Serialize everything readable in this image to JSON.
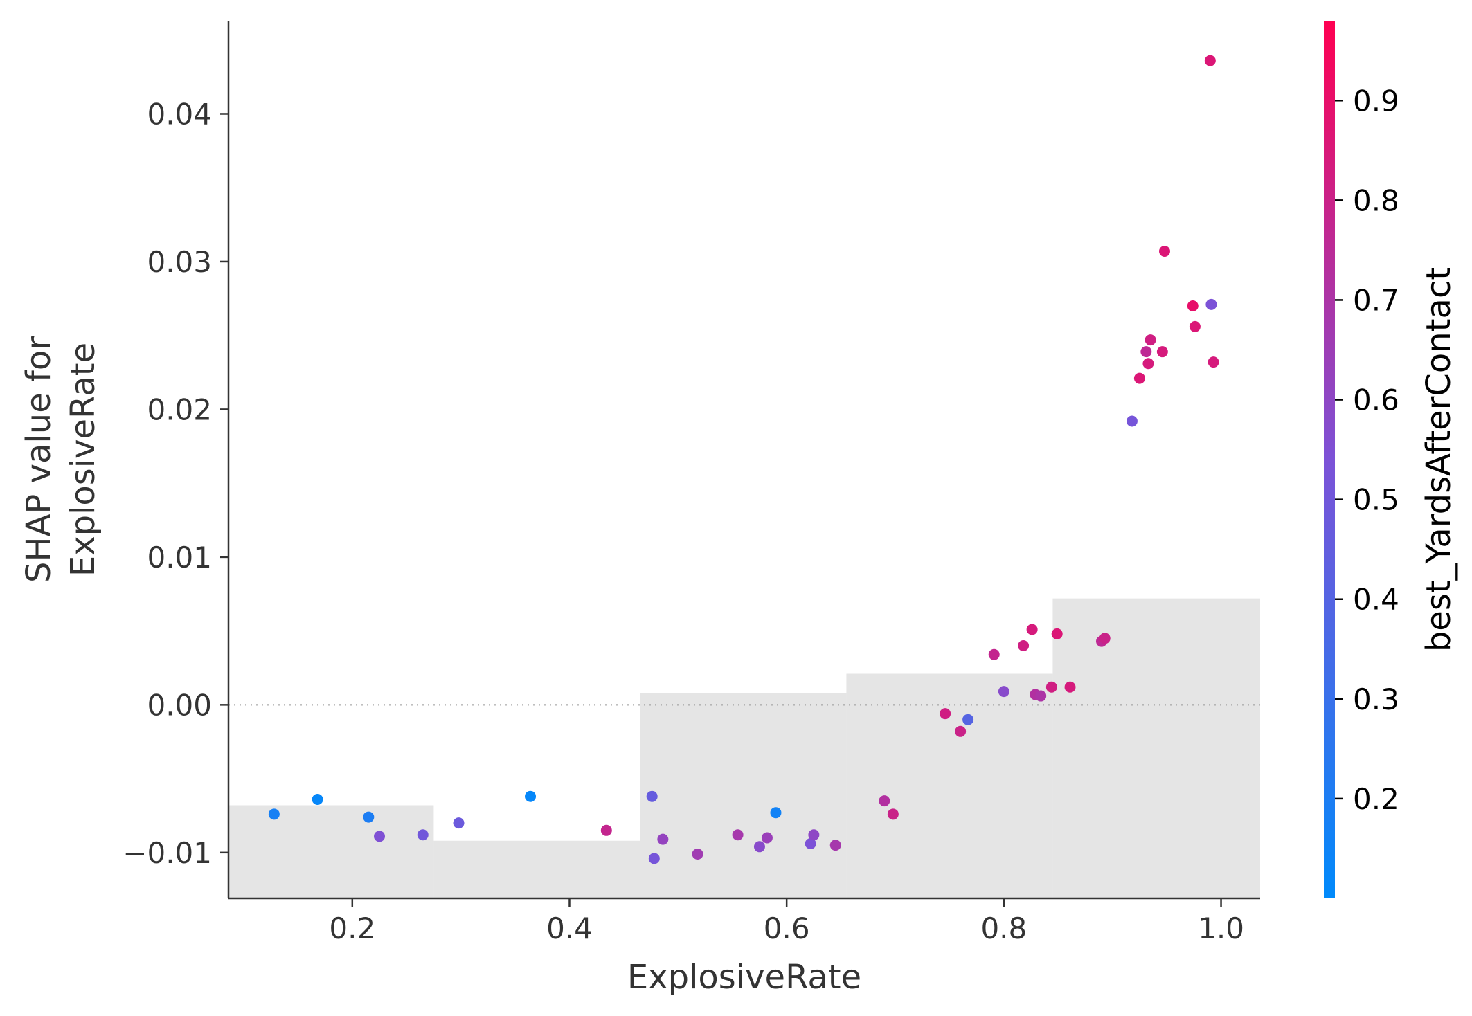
{
  "chart_data": {
    "type": "scatter",
    "xlabel": "ExplosiveRate",
    "ylabel_lines": [
      "SHAP value for",
      "ExplosiveRate"
    ],
    "xlim": [
      0.086,
      1.036
    ],
    "ylim": [
      -0.0131,
      0.0463
    ],
    "xticks": [
      0.2,
      0.4,
      0.6,
      0.8,
      1.0
    ],
    "xtick_labels": [
      "0.2",
      "0.4",
      "0.6",
      "0.8",
      "1.0"
    ],
    "yticks": [
      -0.01,
      0.0,
      0.01,
      0.02,
      0.03,
      0.04
    ],
    "ytick_labels": [
      "−0.01",
      "0.00",
      "0.01",
      "0.02",
      "0.03",
      "0.04"
    ],
    "zero_line": 0.0,
    "histogram_bins": [
      {
        "x0": 0.086,
        "x1": 0.275,
        "height": -0.0068
      },
      {
        "x0": 0.275,
        "x1": 0.465,
        "height": -0.0092
      },
      {
        "x0": 0.465,
        "x1": 0.655,
        "height": 0.0008
      },
      {
        "x0": 0.655,
        "x1": 0.845,
        "height": 0.0021
      },
      {
        "x0": 0.845,
        "x1": 1.036,
        "height": 0.0072
      }
    ],
    "histogram_color": "#e5e5e5",
    "colorbar": {
      "label": "best_YardsAfterContact",
      "range": [
        0.1,
        0.98
      ],
      "ticks": [
        0.2,
        0.3,
        0.4,
        0.5,
        0.6,
        0.7,
        0.8,
        0.9
      ],
      "tick_labels": [
        "0.2",
        "0.3",
        "0.4",
        "0.5",
        "0.6",
        "0.7",
        "0.8",
        "0.9"
      ],
      "color_low": "#008afb",
      "color_mid": "#7c52d7",
      "color_high": "#ff0051"
    },
    "points": [
      {
        "x": 0.128,
        "y": -0.0074,
        "c": 0.18
      },
      {
        "x": 0.168,
        "y": -0.0064,
        "c": 0.12
      },
      {
        "x": 0.215,
        "y": -0.0076,
        "c": 0.2
      },
      {
        "x": 0.225,
        "y": -0.0089,
        "c": 0.55
      },
      {
        "x": 0.265,
        "y": -0.0088,
        "c": 0.5
      },
      {
        "x": 0.298,
        "y": -0.008,
        "c": 0.48
      },
      {
        "x": 0.364,
        "y": -0.0062,
        "c": 0.12
      },
      {
        "x": 0.434,
        "y": -0.0085,
        "c": 0.78
      },
      {
        "x": 0.476,
        "y": -0.0062,
        "c": 0.46
      },
      {
        "x": 0.478,
        "y": -0.0104,
        "c": 0.52
      },
      {
        "x": 0.486,
        "y": -0.0091,
        "c": 0.62
      },
      {
        "x": 0.518,
        "y": -0.0101,
        "c": 0.66
      },
      {
        "x": 0.555,
        "y": -0.0088,
        "c": 0.68
      },
      {
        "x": 0.575,
        "y": -0.0096,
        "c": 0.58
      },
      {
        "x": 0.582,
        "y": -0.009,
        "c": 0.64
      },
      {
        "x": 0.59,
        "y": -0.0073,
        "c": 0.16
      },
      {
        "x": 0.622,
        "y": -0.0094,
        "c": 0.54
      },
      {
        "x": 0.625,
        "y": -0.0088,
        "c": 0.6
      },
      {
        "x": 0.645,
        "y": -0.0095,
        "c": 0.68
      },
      {
        "x": 0.69,
        "y": -0.0065,
        "c": 0.72
      },
      {
        "x": 0.698,
        "y": -0.0074,
        "c": 0.8
      },
      {
        "x": 0.746,
        "y": -0.0006,
        "c": 0.82
      },
      {
        "x": 0.76,
        "y": -0.0018,
        "c": 0.8
      },
      {
        "x": 0.767,
        "y": -0.001,
        "c": 0.4
      },
      {
        "x": 0.791,
        "y": 0.0034,
        "c": 0.78
      },
      {
        "x": 0.8,
        "y": 0.0009,
        "c": 0.58
      },
      {
        "x": 0.818,
        "y": 0.004,
        "c": 0.82
      },
      {
        "x": 0.826,
        "y": 0.0051,
        "c": 0.84
      },
      {
        "x": 0.829,
        "y": 0.0007,
        "c": 0.72
      },
      {
        "x": 0.834,
        "y": 0.0006,
        "c": 0.7
      },
      {
        "x": 0.844,
        "y": 0.0012,
        "c": 0.82
      },
      {
        "x": 0.849,
        "y": 0.0048,
        "c": 0.86
      },
      {
        "x": 0.861,
        "y": 0.0012,
        "c": 0.84
      },
      {
        "x": 0.89,
        "y": 0.0043,
        "c": 0.76
      },
      {
        "x": 0.893,
        "y": 0.0045,
        "c": 0.8
      },
      {
        "x": 0.918,
        "y": 0.0192,
        "c": 0.52
      },
      {
        "x": 0.925,
        "y": 0.0221,
        "c": 0.86
      },
      {
        "x": 0.931,
        "y": 0.0239,
        "c": 0.76
      },
      {
        "x": 0.933,
        "y": 0.0231,
        "c": 0.84
      },
      {
        "x": 0.935,
        "y": 0.0247,
        "c": 0.82
      },
      {
        "x": 0.946,
        "y": 0.0239,
        "c": 0.84
      },
      {
        "x": 0.948,
        "y": 0.0307,
        "c": 0.86
      },
      {
        "x": 0.974,
        "y": 0.027,
        "c": 0.9
      },
      {
        "x": 0.976,
        "y": 0.0256,
        "c": 0.86
      },
      {
        "x": 0.99,
        "y": 0.0436,
        "c": 0.86
      },
      {
        "x": 0.991,
        "y": 0.0271,
        "c": 0.54
      },
      {
        "x": 0.993,
        "y": 0.0232,
        "c": 0.84
      }
    ]
  }
}
